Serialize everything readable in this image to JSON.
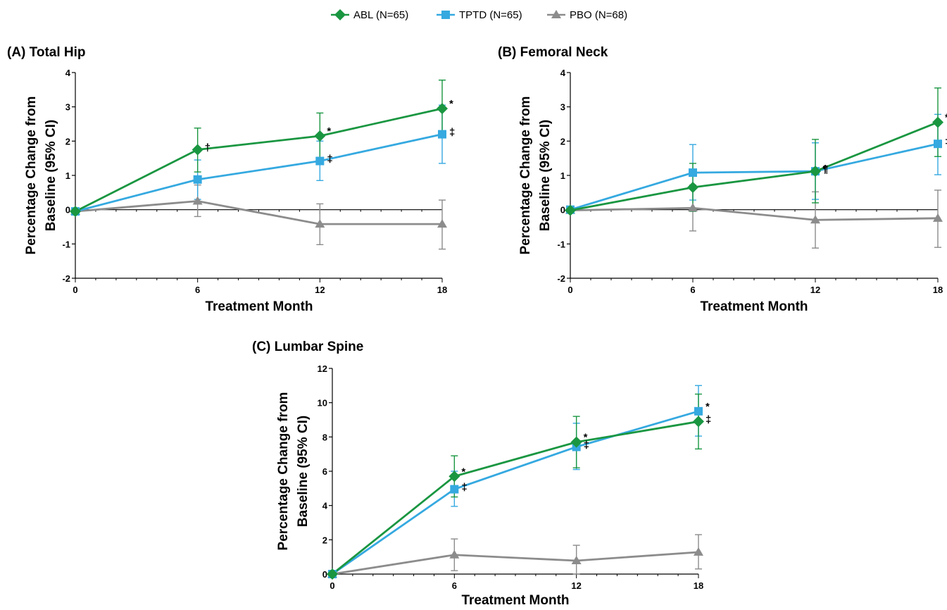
{
  "legend": [
    {
      "name": "ABL (N=65)",
      "color": "#1a9641",
      "marker": "diamond"
    },
    {
      "name": "TPTD (N=65)",
      "color": "#35a9e0",
      "marker": "square"
    },
    {
      "name": "PBO (N=68)",
      "color": "#8c8c8c",
      "marker": "triangle"
    }
  ],
  "chart_data": [
    {
      "type": "line",
      "title": "(A) Total Hip",
      "xlabel": "Treatment Month",
      "ylabel_line1": "Percentage Change from",
      "ylabel_line2": "Baseline (95% CI)",
      "x": [
        0,
        6,
        12,
        18
      ],
      "xticks": [
        0,
        6,
        12,
        18
      ],
      "xlim": [
        0,
        18
      ],
      "ylim": [
        -2,
        4
      ],
      "yticks": [
        -2,
        -1,
        0,
        1,
        2,
        3,
        4
      ],
      "series": [
        {
          "name": "ABL (N=65)",
          "values": [
            -0.05,
            1.75,
            2.15,
            2.95
          ],
          "lower": [
            -0.05,
            1.1,
            1.45,
            2.1
          ],
          "upper": [
            -0.05,
            2.38,
            2.82,
            3.78
          ],
          "annotations": [
            "",
            "†",
            "*",
            "*"
          ]
        },
        {
          "name": "TPTD (N=65)",
          "values": [
            -0.05,
            0.88,
            1.42,
            2.2
          ],
          "lower": [
            -0.05,
            0.3,
            0.85,
            1.35
          ],
          "upper": [
            -0.05,
            1.45,
            2.0,
            3.05
          ],
          "annotations": [
            "",
            "",
            "‡",
            "‡"
          ]
        },
        {
          "name": "PBO (N=68)",
          "values": [
            -0.05,
            0.25,
            -0.42,
            -0.42
          ],
          "lower": [
            -0.05,
            -0.2,
            -1.02,
            -1.15
          ],
          "upper": [
            -0.05,
            0.72,
            0.17,
            0.28
          ],
          "annotations": [
            "",
            "",
            "",
            ""
          ]
        }
      ]
    },
    {
      "type": "line",
      "title": "(B) Femoral Neck",
      "xlabel": "Treatment Month",
      "ylabel_line1": "Percentage Change from",
      "ylabel_line2": "Baseline (95% CI)",
      "x": [
        0,
        6,
        12,
        18
      ],
      "xticks": [
        0,
        6,
        12,
        18
      ],
      "xlim": [
        0,
        18
      ],
      "ylim": [
        -2,
        4
      ],
      "yticks": [
        -2,
        -1,
        0,
        1,
        2,
        3,
        4
      ],
      "series": [
        {
          "name": "ABL (N=65)",
          "values": [
            -0.02,
            0.65,
            1.12,
            2.55
          ],
          "lower": [
            -0.02,
            -0.05,
            0.2,
            1.55
          ],
          "upper": [
            -0.02,
            1.35,
            2.05,
            3.55
          ],
          "annotations": [
            "",
            "",
            "†",
            "*"
          ]
        },
        {
          "name": "TPTD (N=65)",
          "values": [
            0.0,
            1.08,
            1.12,
            1.92
          ],
          "lower": [
            0.0,
            0.28,
            0.3,
            1.02
          ],
          "upper": [
            0.0,
            1.9,
            1.95,
            2.78
          ],
          "annotations": [
            "",
            "",
            "¶",
            "‡"
          ]
        },
        {
          "name": "PBO (N=68)",
          "values": [
            -0.02,
            0.05,
            -0.3,
            -0.25
          ],
          "lower": [
            -0.02,
            -0.62,
            -1.12,
            -1.1
          ],
          "upper": [
            -0.02,
            0.72,
            0.52,
            0.57
          ],
          "annotations": [
            "",
            "",
            "",
            ""
          ]
        }
      ]
    },
    {
      "type": "line",
      "title": "(C) Lumbar Spine",
      "xlabel": "Treatment Month",
      "ylabel_line1": "Percentage Change from",
      "ylabel_line2": "Baseline (95% CI)",
      "x": [
        0,
        6,
        12,
        18
      ],
      "xticks": [
        0,
        6,
        12,
        18
      ],
      "xlim": [
        0,
        18
      ],
      "ylim": [
        0,
        12
      ],
      "yticks": [
        0,
        2,
        4,
        6,
        8,
        10,
        12
      ],
      "series": [
        {
          "name": "ABL (N=65)",
          "values": [
            0.0,
            5.7,
            7.7,
            8.9
          ],
          "lower": [
            0.0,
            4.5,
            6.2,
            7.3
          ],
          "upper": [
            0.0,
            6.9,
            9.2,
            10.5
          ],
          "annotations": [
            "",
            "*",
            "*",
            "‡"
          ]
        },
        {
          "name": "TPTD (N=65)",
          "values": [
            0.0,
            4.95,
            7.42,
            9.5
          ],
          "lower": [
            0.0,
            3.95,
            6.1,
            8.05
          ],
          "upper": [
            0.0,
            6.0,
            8.8,
            11.0
          ],
          "annotations": [
            "",
            "‡",
            "‡",
            "*"
          ]
        },
        {
          "name": "PBO (N=68)",
          "values": [
            0.0,
            1.12,
            0.78,
            1.28
          ],
          "lower": [
            0.0,
            0.2,
            0.0,
            0.3
          ],
          "upper": [
            0.0,
            2.05,
            1.68,
            2.3
          ],
          "annotations": [
            "",
            "",
            "",
            ""
          ]
        }
      ]
    }
  ]
}
